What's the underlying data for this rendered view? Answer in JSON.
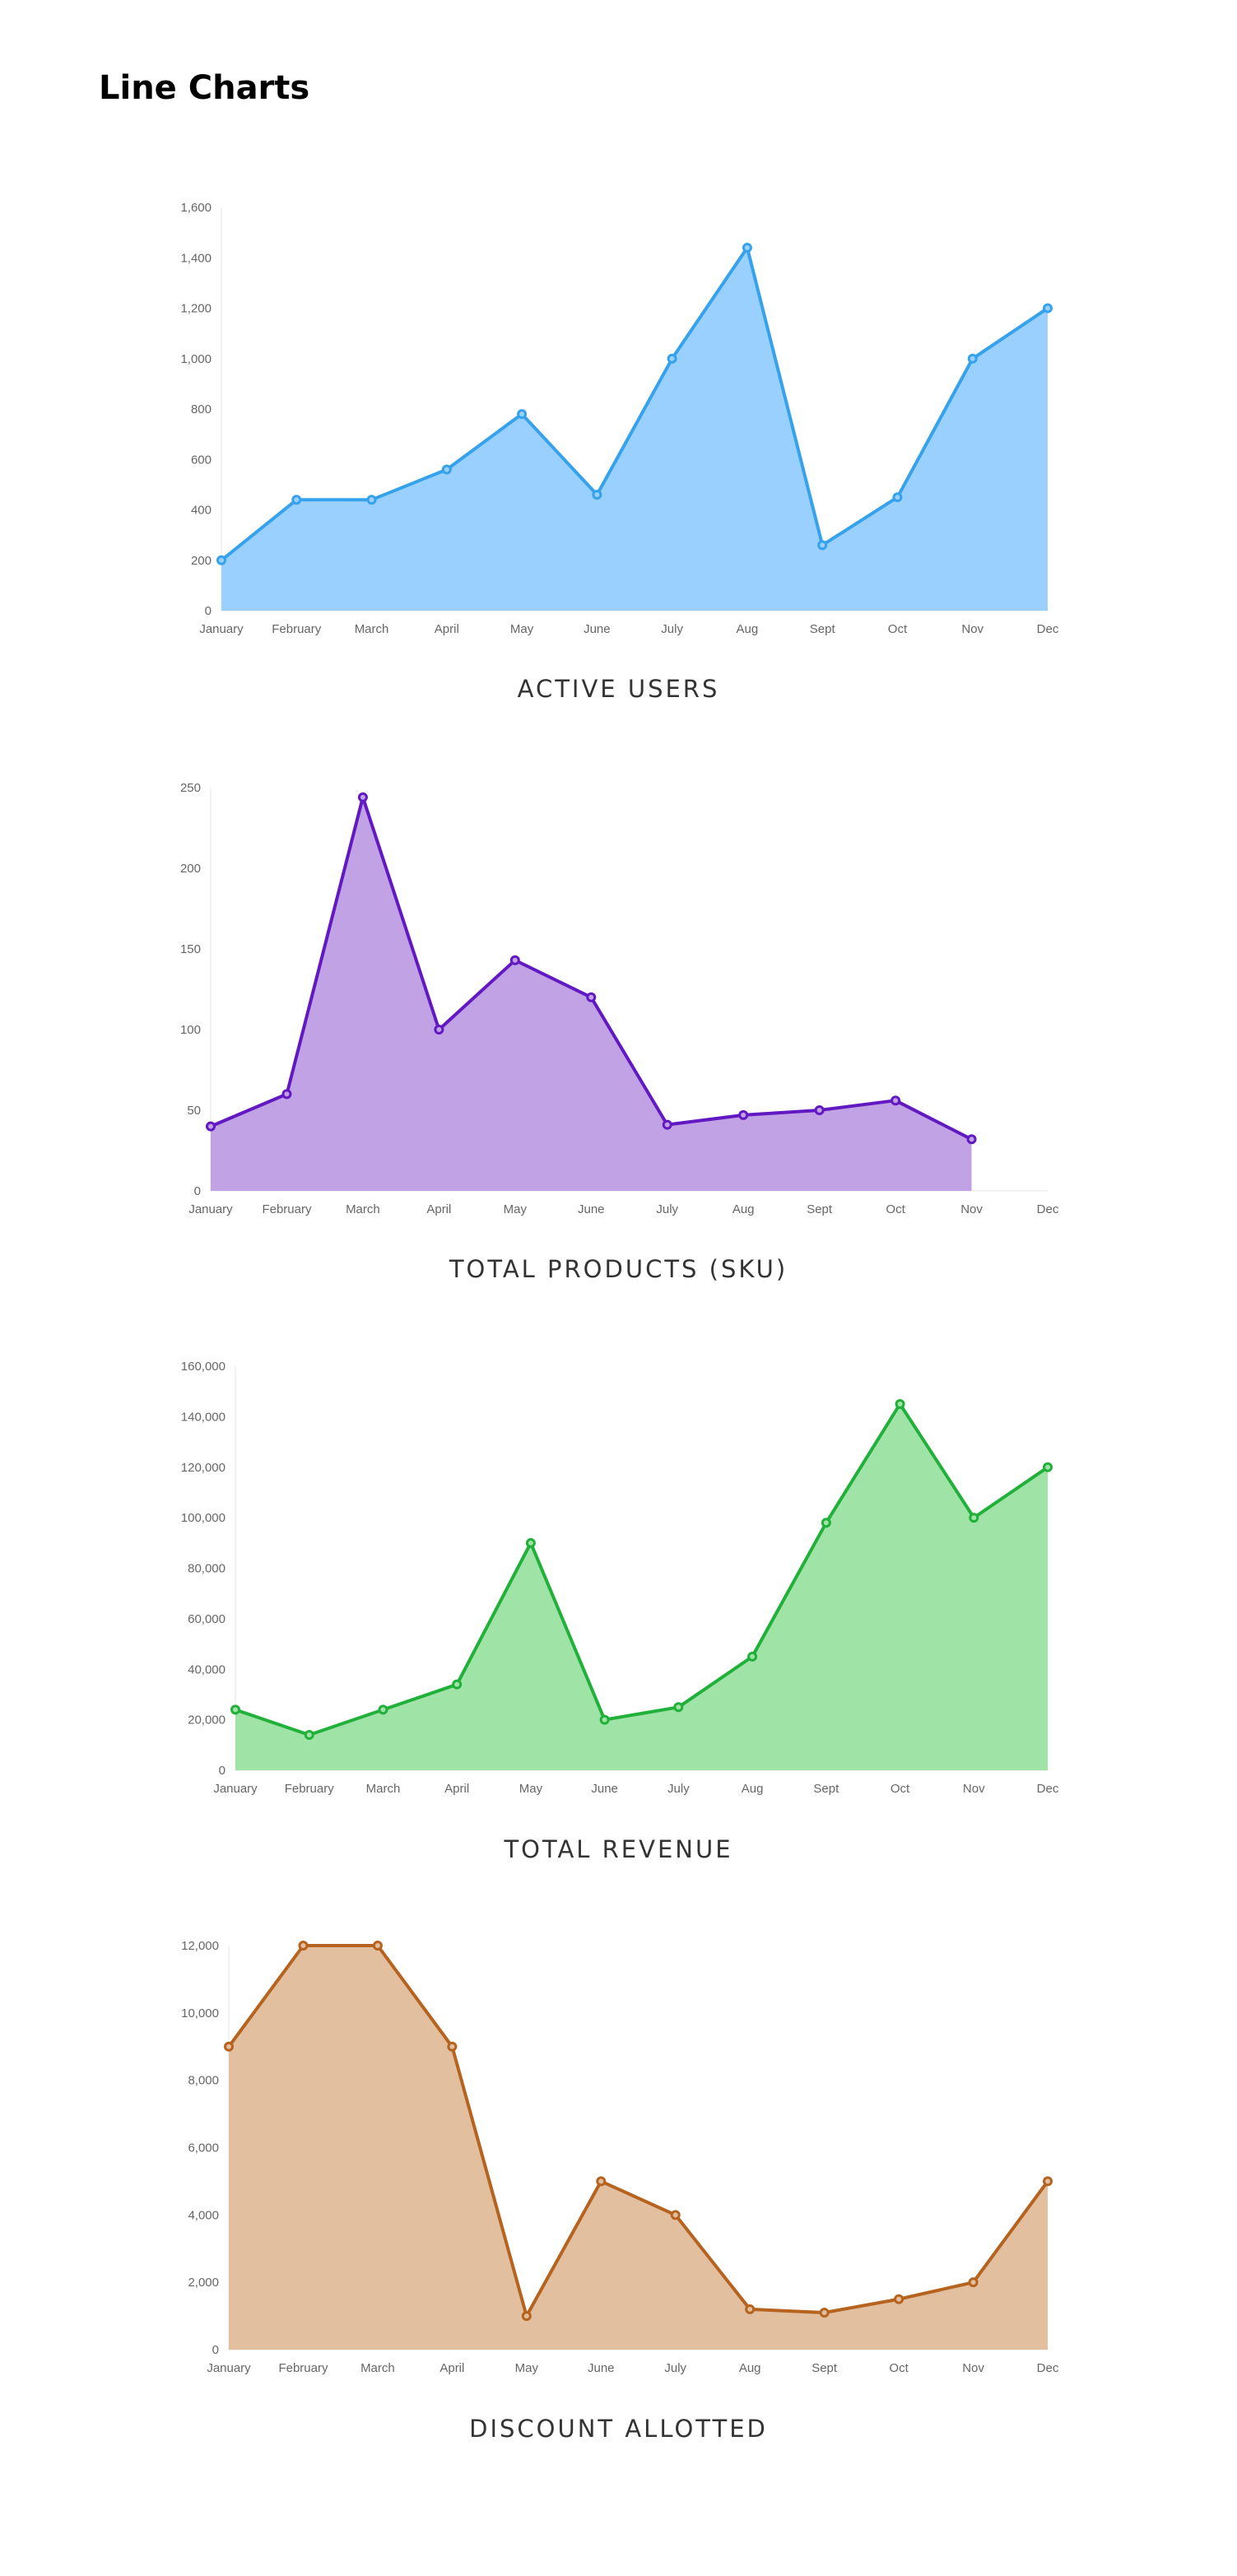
{
  "page": {
    "title": "Line Charts"
  },
  "chart_data": [
    {
      "type": "area",
      "title": "ACTIVE USERS",
      "categories": [
        "January",
        "February",
        "March",
        "April",
        "May",
        "June",
        "July",
        "Aug",
        "Sept",
        "Oct",
        "Nov",
        "Dec"
      ],
      "series": [
        {
          "values": [
            200,
            440,
            440,
            560,
            780,
            460,
            1000,
            1440,
            260,
            450,
            1000,
            1200
          ]
        }
      ],
      "ylim": [
        0,
        1600
      ],
      "yticks": [
        "0",
        "200",
        "400",
        "600",
        "800",
        "1,000",
        "1,200",
        "1,400",
        "1,600"
      ],
      "colors": {
        "line": "#36a2eb",
        "fill": "#9ad0fd"
      }
    },
    {
      "type": "area",
      "title": "TOTAL PRODUCTS (SKU)",
      "categories": [
        "January",
        "February",
        "March",
        "April",
        "May",
        "June",
        "July",
        "Aug",
        "Sept",
        "Oct",
        "Nov",
        "Dec"
      ],
      "series": [
        {
          "values": [
            40,
            60,
            244,
            100,
            143,
            120,
            41,
            47,
            50,
            56,
            32,
            null
          ]
        }
      ],
      "ylim": [
        0,
        250
      ],
      "yticks": [
        "0",
        "50",
        "100",
        "150",
        "200",
        "250"
      ],
      "colors": {
        "line": "#6219c2",
        "fill": "#c1a2e4"
      }
    },
    {
      "type": "area",
      "title": "TOTAL REVENUE",
      "categories": [
        "January",
        "February",
        "March",
        "April",
        "May",
        "June",
        "July",
        "Aug",
        "Sept",
        "Oct",
        "Nov",
        "Dec"
      ],
      "series": [
        {
          "values": [
            24000,
            14000,
            24000,
            34000,
            90000,
            20000,
            25000,
            45000,
            98000,
            145000,
            100000,
            120000
          ]
        }
      ],
      "ylim": [
        0,
        160000
      ],
      "yticks": [
        "0",
        "20,000",
        "40,000",
        "60,000",
        "80,000",
        "100,000",
        "120,000",
        "140,000",
        "160,000"
      ],
      "colors": {
        "line": "#21b039",
        "fill": "#a0e3a7"
      }
    },
    {
      "type": "area",
      "title": "DISCOUNT ALLOTTED",
      "categories": [
        "January",
        "February",
        "March",
        "April",
        "May",
        "June",
        "July",
        "Aug",
        "Sept",
        "Oct",
        "Nov",
        "Dec"
      ],
      "series": [
        {
          "values": [
            9000,
            12000,
            12000,
            9000,
            1000,
            5000,
            4000,
            1200,
            1100,
            1500,
            2000,
            5000
          ]
        }
      ],
      "ylim": [
        0,
        12000
      ],
      "yticks": [
        "0",
        "2,000",
        "4,000",
        "6,000",
        "8,000",
        "10,000",
        "12,000"
      ],
      "colors": {
        "line": "#b5631e",
        "fill": "#e1bf9f"
      }
    }
  ]
}
